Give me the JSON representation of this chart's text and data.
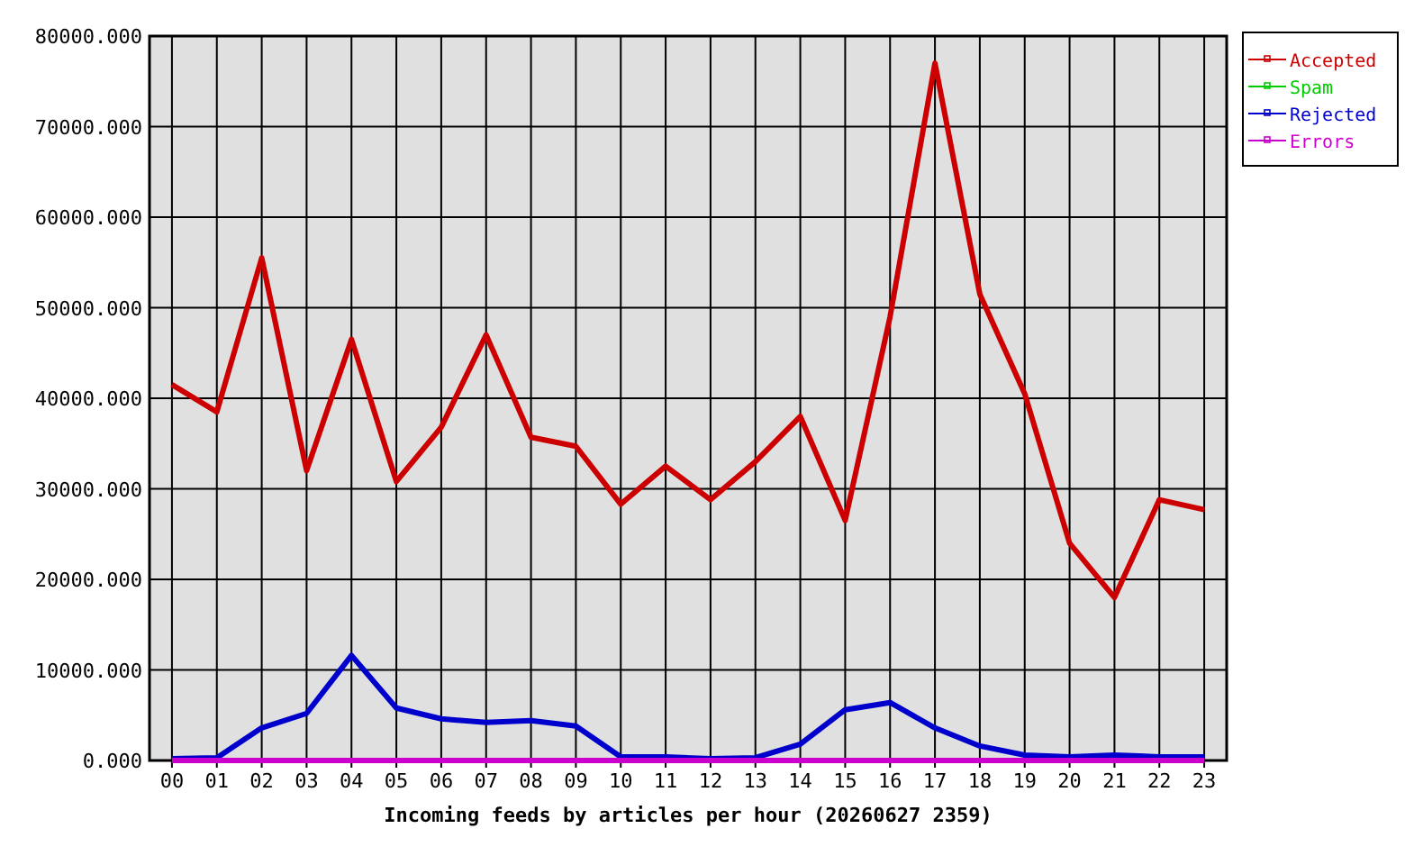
{
  "chart_data": {
    "type": "line",
    "xlabel": "Incoming feeds by articles per hour (20260627 2359)",
    "categories": [
      "00",
      "01",
      "02",
      "03",
      "04",
      "05",
      "06",
      "07",
      "08",
      "09",
      "10",
      "11",
      "12",
      "13",
      "14",
      "15",
      "16",
      "17",
      "18",
      "19",
      "20",
      "21",
      "22",
      "23"
    ],
    "series": [
      {
        "name": "Accepted",
        "color": "#cc0000",
        "values": [
          41500,
          38500,
          55500,
          32000,
          46500,
          30800,
          36800,
          47000,
          35700,
          34700,
          28300,
          32500,
          28800,
          33000,
          38000,
          26500,
          49000,
          77000,
          51500,
          40500,
          24000,
          18000,
          28800,
          27700
        ]
      },
      {
        "name": "Spam",
        "color": "#00cc00",
        "values": [
          null,
          null,
          null,
          null,
          null,
          null,
          null,
          null,
          null,
          null,
          null,
          null,
          null,
          null,
          null,
          null,
          null,
          null,
          null,
          null,
          null,
          null,
          null,
          null
        ]
      },
      {
        "name": "Rejected",
        "color": "#0000cc",
        "values": [
          200,
          300,
          3600,
          5200,
          11600,
          5800,
          4600,
          4200,
          4400,
          3800,
          400,
          400,
          200,
          300,
          1800,
          5600,
          6400,
          3600,
          1600,
          600,
          400,
          600,
          400,
          400
        ]
      },
      {
        "name": "Errors",
        "color": "#cc00cc",
        "values": [
          0,
          0,
          0,
          0,
          0,
          0,
          0,
          0,
          0,
          0,
          0,
          0,
          0,
          0,
          0,
          0,
          0,
          0,
          0,
          0,
          0,
          0,
          0,
          0
        ]
      }
    ],
    "ylim": [
      0,
      80000
    ],
    "yticks": [
      {
        "value": 0,
        "label": "0.000"
      },
      {
        "value": 10000,
        "label": "10000.000"
      },
      {
        "value": 20000,
        "label": "20000.000"
      },
      {
        "value": 30000,
        "label": "30000.000"
      },
      {
        "value": 40000,
        "label": "40000.000"
      },
      {
        "value": 50000,
        "label": "50000.000"
      },
      {
        "value": 60000,
        "label": "60000.000"
      },
      {
        "value": 70000,
        "label": "70000.000"
      },
      {
        "value": 80000,
        "label": "80000.000"
      }
    ],
    "grid": true,
    "legend": "right",
    "marker": "none",
    "line_style": "solid"
  }
}
